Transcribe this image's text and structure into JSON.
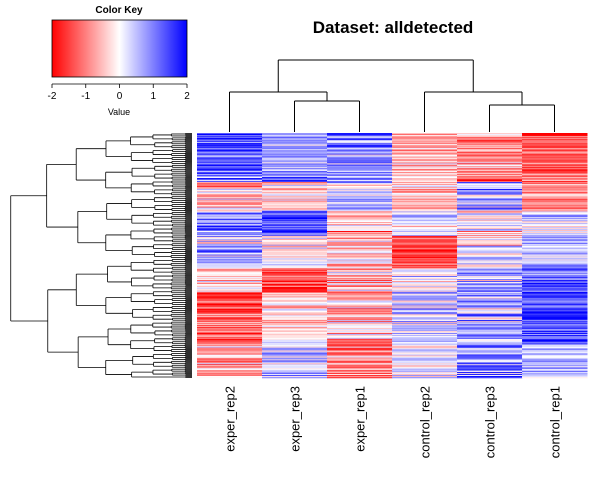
{
  "chart_data": {
    "type": "heatmap",
    "title": "Dataset: alldetected",
    "columns": [
      "exper_rep2",
      "exper_rep3",
      "exper_rep1",
      "control_rep2",
      "control_rep3",
      "control_rep1"
    ],
    "row_labels_shown": false,
    "color_key": {
      "title": "Color Key",
      "xlabel": "Value",
      "ticks": [
        "-2",
        "-1",
        "0",
        "1",
        "2"
      ],
      "range": [
        -2,
        2
      ],
      "low_color": "#ff0000",
      "mid_color": "#ffffff",
      "high_color": "#0000ff"
    },
    "column_dendrogram": {
      "top_split": [
        [
          "exper_rep2",
          "exper_rep3",
          "exper_rep1"
        ],
        [
          "control_rep2",
          "control_rep3",
          "control_rep1"
        ]
      ],
      "left_group": [
        [
          "exper_rep2"
        ],
        [
          "exper_rep3",
          "exper_rep1"
        ]
      ],
      "right_group": [
        [
          "control_rep2"
        ],
        [
          "control_rep3",
          "control_rep1"
        ]
      ]
    },
    "row_blocks": [
      {
        "from": 0.0,
        "to": 0.2,
        "values": [
          1.3,
          0.8,
          0.9,
          -0.6,
          -0.9,
          -1.4
        ]
      },
      {
        "from": 0.2,
        "to": 0.32,
        "values": [
          -0.4,
          -0.3,
          0.5,
          -0.5,
          0.7,
          -1.0
        ]
      },
      {
        "from": 0.32,
        "to": 0.42,
        "values": [
          0.8,
          1.5,
          -0.5,
          0.1,
          -0.3,
          0.4
        ]
      },
      {
        "from": 0.42,
        "to": 0.55,
        "values": [
          0.6,
          -0.2,
          -0.3,
          -1.4,
          0.1,
          0.5
        ]
      },
      {
        "from": 0.55,
        "to": 0.65,
        "values": [
          -0.5,
          -1.4,
          -0.6,
          0.2,
          0.6,
          1.2
        ]
      },
      {
        "from": 0.65,
        "to": 0.85,
        "values": [
          -1.3,
          -0.2,
          -0.5,
          0.4,
          0.6,
          1.4
        ]
      },
      {
        "from": 0.85,
        "to": 1.0,
        "values": [
          -0.7,
          0.4,
          -1.0,
          0.2,
          1.0,
          0.6
        ]
      }
    ],
    "row_count_estimate": 250
  }
}
